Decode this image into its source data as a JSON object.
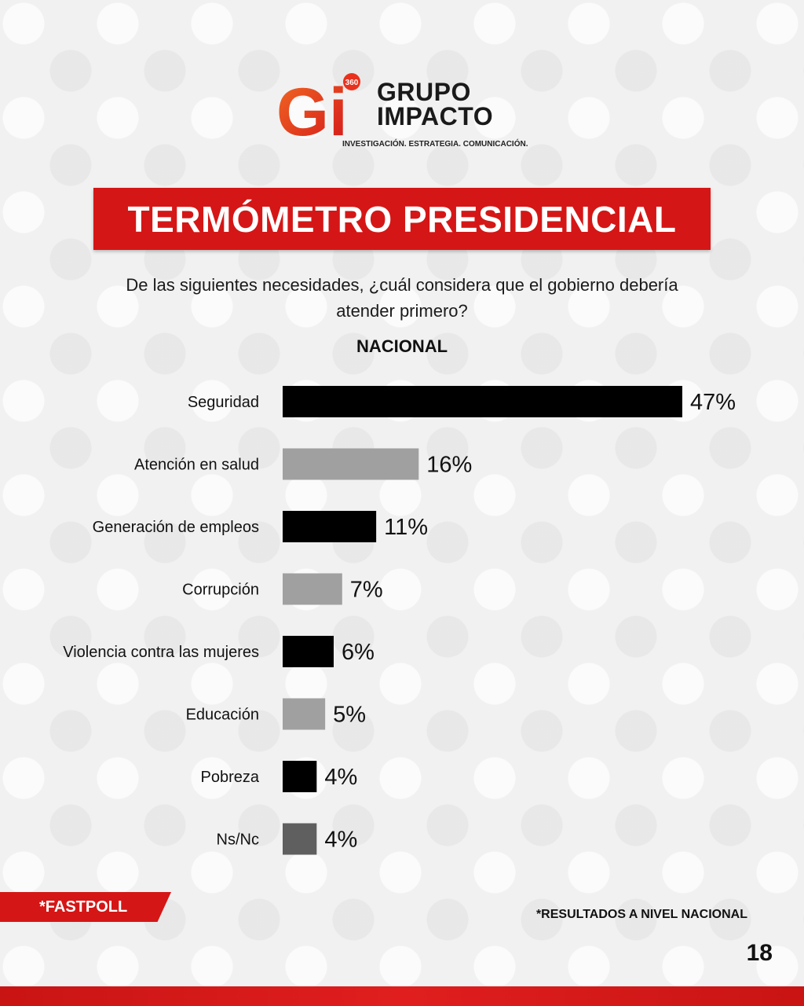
{
  "logo": {
    "mark": "Gi",
    "badge": "360",
    "line1": "GRUPO",
    "line2": "IMPACTO",
    "tagline": "INVESTIGACIÓN. ESTRATEGIA. COMUNICACIÓN."
  },
  "colors": {
    "brand_red": "#d51616",
    "bar_dark": "#000000",
    "bar_light": "#a0a0a0",
    "bar_nsnc": "#5f5f5f"
  },
  "chart_data": {
    "type": "bar",
    "orientation": "horizontal",
    "title": "TERMÓMETRO PRESIDENCIAL",
    "question": "De las siguientes necesidades, ¿cuál considera que el gobierno debería atender primero?",
    "subtitle": "NACIONAL",
    "categories": [
      "Seguridad",
      "Atención en salud",
      "Generación de empleos",
      "Corrupción",
      "Violencia contra las mujeres",
      "Educación",
      "Pobreza",
      "Ns/Nc"
    ],
    "values": [
      47,
      16,
      11,
      7,
      6,
      5,
      4,
      4
    ],
    "value_labels": [
      "47%",
      "16%",
      "11%",
      "7%",
      "6%",
      "5%",
      "4%",
      "4%"
    ],
    "unit": "%",
    "bar_colors": [
      "#000000",
      "#a0a0a0",
      "#000000",
      "#a0a0a0",
      "#000000",
      "#a0a0a0",
      "#000000",
      "#5f5f5f"
    ],
    "grid": false
  },
  "footer": {
    "tag": "*FASTPOLL",
    "note": "*RESULTADOS A NIVEL NACIONAL",
    "page": "18"
  }
}
